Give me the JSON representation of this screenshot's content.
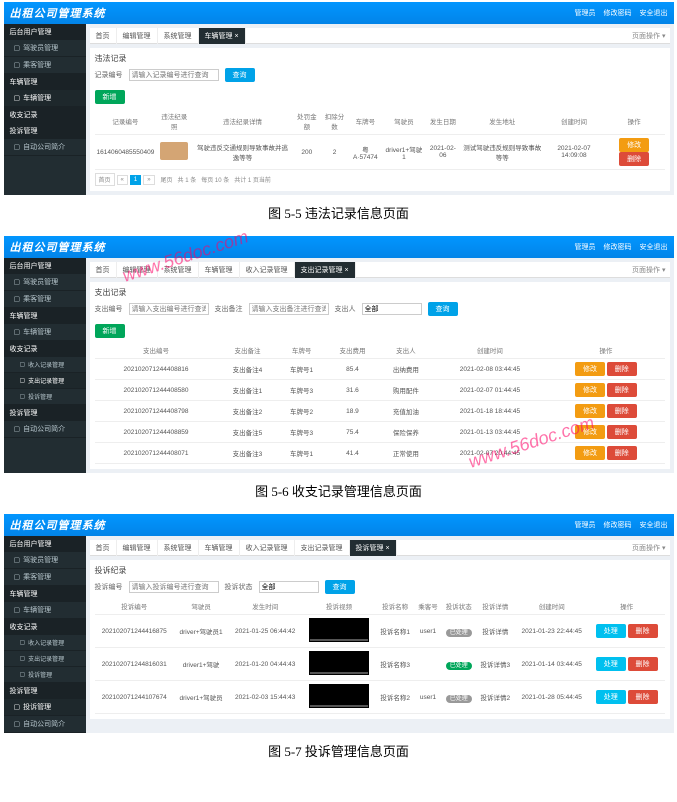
{
  "brand": "出租公司管理系统",
  "topLinks": [
    "管理员",
    "修改密码",
    "安全退出"
  ],
  "p1": {
    "sideHead": "后台用户管理",
    "side": [
      "驾驶员管理",
      "乘客管理",
      "车辆管理",
      "车辆管理",
      "收支记录",
      "投诉管理",
      "自动公司简介"
    ],
    "tabs": [
      "首页",
      "编辑管理",
      "系统管理",
      "车辆管理 ×"
    ],
    "tabCtrl": "页面操作 ▾",
    "cardTitle": "违法记录",
    "searchLabel": "记录编号",
    "searchPH": "请输入记录编号进行查询",
    "searchBtn": "查询",
    "addBtn": "新增",
    "cols": [
      "记录编号",
      "违法纪录照",
      "违法纪录详情",
      "处罚金额",
      "扣除分数",
      "车牌号",
      "驾驶员",
      "发生日期",
      "发生地址",
      "创建时间",
      "操作"
    ],
    "row": {
      "id": "1614060485550409",
      "detail": "驾驶违反交通规则导致事故并逃逸等等",
      "amt": "200",
      "pts": "2",
      "plate": "粤A·57474",
      "driver": "driver1+驾驶1",
      "date": "2021-02-06",
      "addr": "测试驾驶违反规则导致事故等等",
      "ctime": "2021-02-07 14:09:08"
    },
    "editBtn": "修改",
    "delBtn": "删除",
    "pager": "首页 « 1 » 尾页   共 1 条  每页 10 条  共计 1 页当前"
  },
  "cap1": "图 5-5 违法记录信息页面",
  "p2": {
    "side": [
      "驾驶员管理",
      "乘客管理",
      "车辆管理",
      "车辆管理",
      "收支记录",
      "收入记录管理",
      "支出记录管理",
      "投诉管理",
      "投诉管理",
      "自动公司简介"
    ],
    "tabs": [
      "首页",
      "编辑管理",
      "系统管理",
      "车辆管理",
      "收入记录管理",
      "支出记录管理 ×"
    ],
    "cardTitle": "支出记录",
    "s1": "支出编号",
    "s1ph": "请输入支出编号进行查询",
    "s2": "支出备注",
    "s2ph": "请输入支出备注进行查询",
    "s3": "支出人",
    "s3v": "全部",
    "searchBtn": "查询",
    "addBtn": "新增",
    "cols": [
      "支出编号",
      "支出备注",
      "车牌号",
      "支出费用",
      "支出人",
      "创建时间",
      "操作"
    ],
    "rows": [
      {
        "id": "202102071244408816",
        "bz": "支出备注4",
        "plate": "车牌号1",
        "fee": "85.4",
        "per": "出纳费用",
        "ctime": "2021-02-08 03:44:45"
      },
      {
        "id": "202102071244408580",
        "bz": "支出备注1",
        "plate": "车牌号3",
        "fee": "31.6",
        "per": "购用配件",
        "ctime": "2021-02-07 01:44:45"
      },
      {
        "id": "202102071244408798",
        "bz": "支出备注2",
        "plate": "车牌号2",
        "fee": "18.9",
        "per": "充值加油",
        "ctime": "2021-01-18 18:44:45"
      },
      {
        "id": "202102071244408859",
        "bz": "支出备注5",
        "plate": "车牌号3",
        "fee": "75.4",
        "per": "保险保养",
        "ctime": "2021-01-13 03:44:45"
      },
      {
        "id": "202102071244408071",
        "bz": "支出备注3",
        "plate": "车牌号1",
        "fee": "41.4",
        "per": "正常使用",
        "ctime": "2021-02-07 20:44:45"
      }
    ]
  },
  "cap2": "图 5-6 收支记录管理信息页面",
  "p3": {
    "side": [
      "驾驶员管理",
      "乘客管理",
      "车辆管理",
      "车辆管理",
      "收支记录",
      "收入记录管理",
      "支出记录管理",
      "投诉管理",
      "投诉管理",
      "自动公司简介"
    ],
    "tabs": [
      "首页",
      "编辑管理",
      "系统管理",
      "车辆管理",
      "收入记录管理",
      "支出记录管理",
      "投诉管理 ×"
    ],
    "cardTitle": "投诉纪录",
    "s1": "投诉编号",
    "s1ph": "请输入投诉编号进行查询",
    "s2": "投诉状态",
    "s2v": "全部",
    "searchBtn": "查询",
    "cols": [
      "投诉编号",
      "驾驶员",
      "发生时间",
      "投诉视频",
      "投诉名称",
      "乘客号",
      "投诉状态",
      "投诉详情",
      "创建时间",
      "操作"
    ],
    "rows": [
      {
        "id": "202102071244416875",
        "drv": "driver+驾驶员1",
        "date": "2021-01-25 06:44:42",
        "name": "投诉名称1",
        "usr": "user1",
        "st": "已处理",
        "stc": "bg-gray",
        "det": "投诉详情",
        "ctime": "2021-01-23 22:44:45"
      },
      {
        "id": "202102071244816031",
        "drv": "driver1+驾驶",
        "date": "2021-01-20 04:44:43",
        "name": "投诉名称3",
        "usr": "",
        "st": "已处理",
        "stc": "bg-green",
        "det": "投诉详情3",
        "ctime": "2021-01-14 03:44:45"
      },
      {
        "id": "202102071244107674",
        "drv": "driver1+驾驶员",
        "date": "2021-02-03 15:44:43",
        "name": "投诉名称2",
        "usr": "user1",
        "st": "已处理",
        "stc": "bg-gray",
        "det": "投诉详情2",
        "ctime": "2021-01-28 05:44:45"
      }
    ],
    "procBtn": "处理",
    "delBtn": "删除"
  },
  "cap3": "图 5-7 投诉管理信息页面"
}
